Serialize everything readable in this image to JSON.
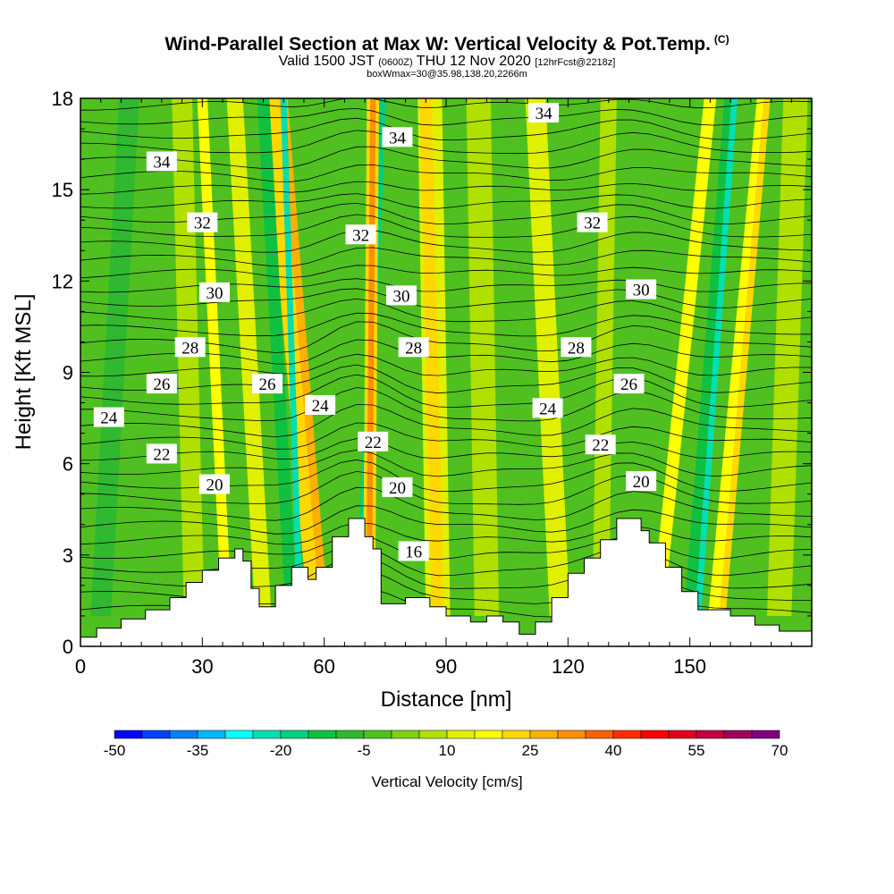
{
  "title": {
    "main": "Wind-Parallel Section at Max W: Vertical Velocity & Pot.Temp.",
    "copyright": "(C)",
    "valid_prefix": "Valid 1500 JST",
    "valid_utc": "(0600Z)",
    "valid_date": "THU 12 Nov 2020",
    "forecast": "[12hrFcst@2218z]",
    "box": "boxWmax=30@35.98,138.20,2266m"
  },
  "chart_data": {
    "type": "heatmap",
    "xlabel": "Distance [nm]",
    "ylabel": "Height [Kft MSL]",
    "xlim": [
      0,
      180
    ],
    "ylim": [
      0,
      18
    ],
    "x_ticks": [
      0,
      30,
      60,
      90,
      120,
      150
    ],
    "y_ticks": [
      0,
      3,
      6,
      9,
      12,
      15,
      18
    ],
    "colorbar": {
      "title": "Vertical Velocity [cm/s]",
      "levels": [
        -50,
        -45,
        -40,
        -35,
        -30,
        -25,
        -20,
        -15,
        -10,
        -5,
        0,
        5,
        10,
        15,
        20,
        25,
        30,
        35,
        40,
        45,
        50,
        55,
        60,
        65,
        70
      ],
      "tick_labels": [
        -50,
        -35,
        -20,
        -5,
        10,
        25,
        40,
        55,
        70
      ],
      "colors": [
        "#0000ff",
        "#0040ff",
        "#0080ff",
        "#00b4ff",
        "#00ffff",
        "#00e0b0",
        "#00d080",
        "#10c040",
        "#30b830",
        "#50c020",
        "#80d010",
        "#b0e000",
        "#e0f000",
        "#ffff00",
        "#ffd800",
        "#ffb000",
        "#ff9000",
        "#ff6000",
        "#ff3000",
        "#ff0000",
        "#e00020",
        "#c00040",
        "#a00060",
        "#800080"
      ]
    },
    "theta_contour_labels": [
      {
        "value": "34",
        "x": 20,
        "y": 15.9
      },
      {
        "value": "34",
        "x": 78,
        "y": 16.7
      },
      {
        "value": "34",
        "x": 114,
        "y": 17.5
      },
      {
        "value": "32",
        "x": 30,
        "y": 13.9
      },
      {
        "value": "32",
        "x": 69,
        "y": 13.5
      },
      {
        "value": "32",
        "x": 126,
        "y": 13.9
      },
      {
        "value": "30",
        "x": 33,
        "y": 11.6
      },
      {
        "value": "30",
        "x": 79,
        "y": 11.5
      },
      {
        "value": "30",
        "x": 138,
        "y": 11.7
      },
      {
        "value": "28",
        "x": 27,
        "y": 9.8
      },
      {
        "value": "28",
        "x": 82,
        "y": 9.8
      },
      {
        "value": "28",
        "x": 122,
        "y": 9.8
      },
      {
        "value": "26",
        "x": 20,
        "y": 8.6
      },
      {
        "value": "26",
        "x": 46,
        "y": 8.6
      },
      {
        "value": "26",
        "x": 135,
        "y": 8.6
      },
      {
        "value": "24",
        "x": 7,
        "y": 7.5
      },
      {
        "value": "24",
        "x": 59,
        "y": 7.9
      },
      {
        "value": "24",
        "x": 115,
        "y": 7.8
      },
      {
        "value": "22",
        "x": 20,
        "y": 6.3
      },
      {
        "value": "22",
        "x": 72,
        "y": 6.7
      },
      {
        "value": "22",
        "x": 128,
        "y": 6.6
      },
      {
        "value": "20",
        "x": 33,
        "y": 5.3
      },
      {
        "value": "20",
        "x": 78,
        "y": 5.2
      },
      {
        "value": "20",
        "x": 138,
        "y": 5.4
      },
      {
        "value": "16",
        "x": 82,
        "y": 3.1
      }
    ]
  }
}
